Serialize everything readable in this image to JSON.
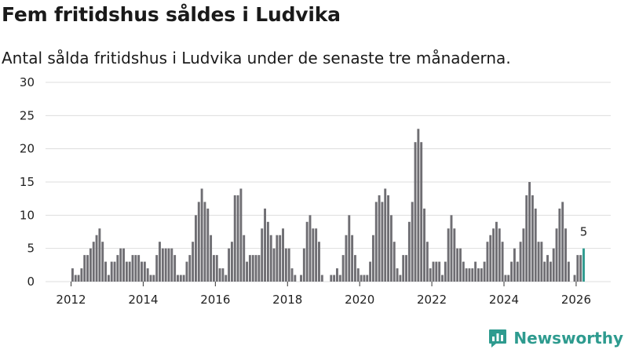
{
  "brand": {
    "name": "Newsworthy",
    "color": "#2e9b8f",
    "icon": "newsworthy-logo-icon"
  },
  "colors": {
    "bar": "#6f6e73",
    "highlight": "#2e9b8f",
    "grid": "#dddddd"
  },
  "chart_data": {
    "type": "bar",
    "title": "Fem fritidshus såldes i Ludvika",
    "subtitle": "Antal sålda fritidshus i Ludvika under de senaste tre månaderna.",
    "xlabel": "",
    "ylabel": "",
    "ylim": [
      0,
      30
    ],
    "yticks": [
      0,
      5,
      10,
      15,
      20,
      25,
      30
    ],
    "xticks": [
      "2012",
      "2014",
      "2016",
      "2018",
      "2020",
      "2022",
      "2024",
      "2026"
    ],
    "grid": true,
    "start": "2012-01",
    "interval": "month",
    "values": [
      2,
      1,
      1,
      2,
      4,
      4,
      5,
      6,
      7,
      8,
      6,
      3,
      1,
      3,
      3,
      4,
      5,
      5,
      3,
      3,
      4,
      4,
      4,
      3,
      3,
      2,
      1,
      1,
      4,
      6,
      5,
      5,
      5,
      5,
      4,
      1,
      1,
      1,
      3,
      4,
      6,
      10,
      12,
      14,
      12,
      11,
      7,
      4,
      4,
      2,
      2,
      1,
      5,
      6,
      13,
      13,
      14,
      7,
      3,
      4,
      4,
      4,
      4,
      8,
      11,
      9,
      7,
      5,
      7,
      7,
      8,
      5,
      5,
      2,
      1,
      0,
      1,
      5,
      9,
      10,
      8,
      8,
      6,
      1,
      0,
      0,
      1,
      1,
      2,
      1,
      4,
      7,
      10,
      7,
      4,
      2,
      1,
      1,
      1,
      3,
      7,
      12,
      13,
      12,
      14,
      13,
      10,
      6,
      2,
      1,
      4,
      4,
      9,
      12,
      21,
      23,
      21,
      11,
      6,
      2,
      3,
      3,
      3,
      1,
      3,
      8,
      10,
      8,
      5,
      5,
      3,
      2,
      2,
      2,
      3,
      2,
      2,
      3,
      6,
      7,
      8,
      9,
      8,
      6,
      1,
      1,
      3,
      5,
      3,
      6,
      8,
      13,
      15,
      13,
      11,
      6,
      6,
      3,
      4,
      3,
      5,
      8,
      11,
      12,
      8,
      3,
      0,
      1,
      4,
      4,
      5
    ],
    "highlight_last": true,
    "annotation": {
      "label": "5",
      "value": 5
    }
  }
}
